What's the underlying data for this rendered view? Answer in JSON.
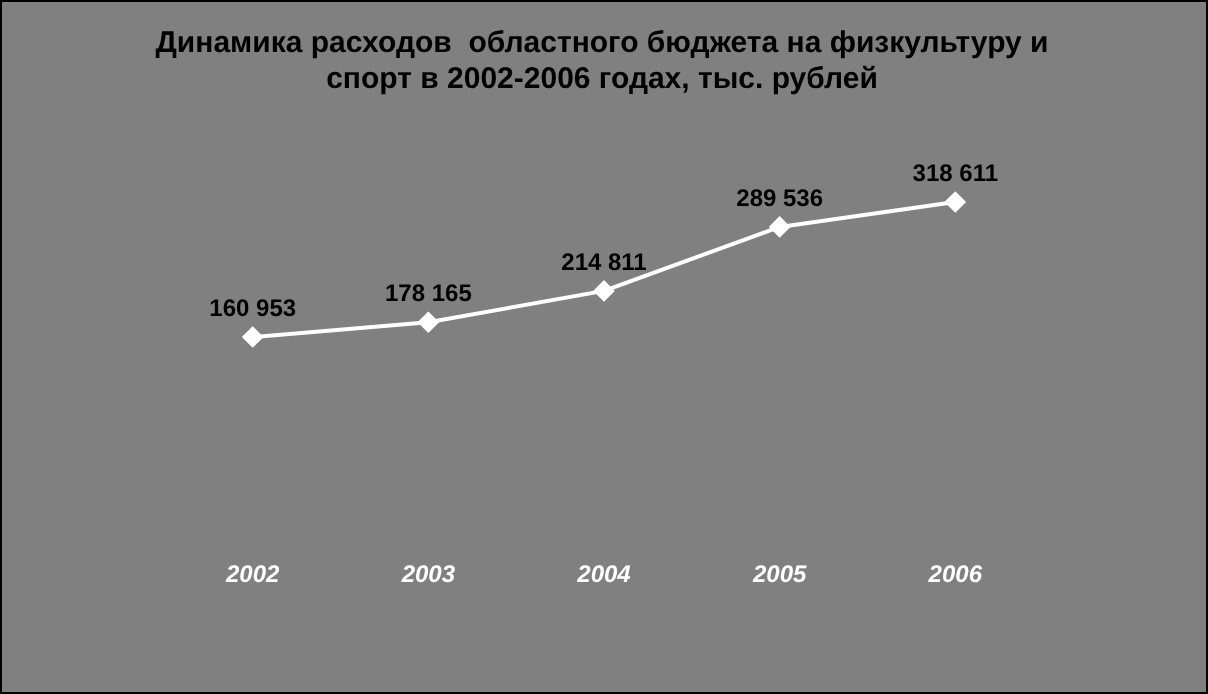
{
  "chart_data": {
    "type": "line",
    "title": "Динамика расходов  областного бюджета на физкультуру и спорт в 2002-2006 годах, тыс. рублей",
    "categories": [
      "2002",
      "2003",
      "2004",
      "2005",
      "2006"
    ],
    "series": [
      {
        "color": "#ffffff",
        "values": [
          160953,
          178165,
          214811,
          289536,
          318611
        ],
        "value_labels": [
          "160 953",
          "178 165",
          "214 811",
          "289 536",
          "318 611"
        ]
      }
    ],
    "tick_labels": "x",
    "grid": false,
    "legend": false,
    "marker": "diamond",
    "line_style": "solid"
  }
}
